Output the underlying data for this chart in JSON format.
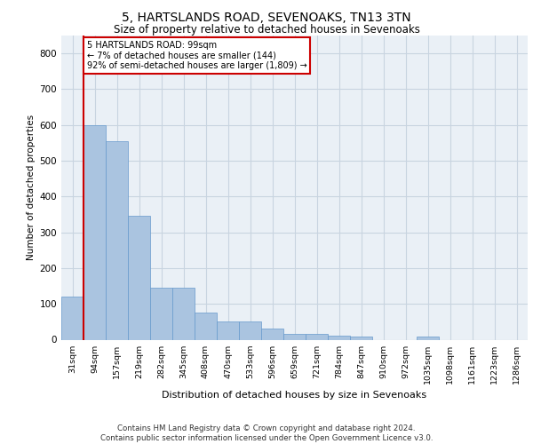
{
  "title1": "5, HARTSLANDS ROAD, SEVENOAKS, TN13 3TN",
  "title2": "Size of property relative to detached houses in Sevenoaks",
  "xlabel": "Distribution of detached houses by size in Sevenoaks",
  "ylabel": "Number of detached properties",
  "categories": [
    "31sqm",
    "94sqm",
    "157sqm",
    "219sqm",
    "282sqm",
    "345sqm",
    "408sqm",
    "470sqm",
    "533sqm",
    "596sqm",
    "659sqm",
    "721sqm",
    "784sqm",
    "847sqm",
    "910sqm",
    "972sqm",
    "1035sqm",
    "1098sqm",
    "1161sqm",
    "1223sqm",
    "1286sqm"
  ],
  "values": [
    120,
    600,
    555,
    345,
    145,
    145,
    75,
    50,
    50,
    30,
    15,
    15,
    12,
    8,
    0,
    0,
    8,
    0,
    0,
    0,
    0
  ],
  "bar_color": "#aac4e0",
  "bar_edge_color": "#6699cc",
  "annotation_text_line1": "5 HARTSLANDS ROAD: 99sqm",
  "annotation_text_line2": "← 7% of detached houses are smaller (144)",
  "annotation_text_line3": "92% of semi-detached houses are larger (1,809) →",
  "annotation_box_color": "#ffffff",
  "annotation_border_color": "#cc0000",
  "vline_color": "#cc0000",
  "vline_x": 1,
  "ylim": [
    0,
    850
  ],
  "yticks": [
    0,
    100,
    200,
    300,
    400,
    500,
    600,
    700,
    800
  ],
  "grid_color": "#c8d4e0",
  "bg_color": "#eaf0f6",
  "footer1": "Contains HM Land Registry data © Crown copyright and database right 2024.",
  "footer2": "Contains public sector information licensed under the Open Government Licence v3.0."
}
